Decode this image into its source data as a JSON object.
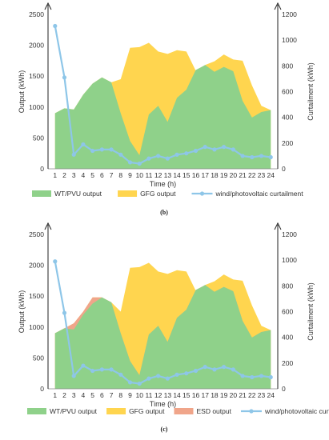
{
  "chart_data": [
    {
      "id": "b",
      "type": "area",
      "caption": "(b)",
      "x": [
        1,
        2,
        3,
        4,
        5,
        6,
        7,
        8,
        9,
        10,
        11,
        12,
        13,
        14,
        15,
        16,
        17,
        18,
        19,
        20,
        21,
        22,
        23,
        24
      ],
      "xlabel": "Time (h)",
      "ylabel_left": "Output (kWh)",
      "ylabel_right": "Curtailment (kWh)",
      "ylim_left": [
        0,
        2500
      ],
      "ylim_right": [
        0,
        1200
      ],
      "yticks_left": [
        0,
        500,
        1000,
        1500,
        2000,
        2500
      ],
      "yticks_right": [
        0,
        200,
        400,
        600,
        800,
        1000,
        1200
      ],
      "grid": false,
      "legend_position": "bottom",
      "series": [
        {
          "name": "WT/PVU output",
          "kind": "area",
          "axis": "left",
          "color": "#8fd18a",
          "values": [
            900,
            980,
            960,
            1200,
            1380,
            1480,
            1400,
            900,
            450,
            220,
            880,
            1020,
            760,
            1150,
            1280,
            1600,
            1680,
            1570,
            1650,
            1580,
            1100,
            830,
            920,
            950
          ]
        },
        {
          "name": "GFG output",
          "kind": "area-total",
          "axis": "left",
          "color": "#ffd54f",
          "values": [
            900,
            980,
            960,
            1200,
            1380,
            1480,
            1400,
            1450,
            1960,
            1970,
            2040,
            1900,
            1860,
            1920,
            1900,
            1590,
            1680,
            1740,
            1850,
            1770,
            1750,
            1350,
            1020,
            950
          ]
        },
        {
          "name": "wind/photovoltaic curtailment",
          "kind": "line",
          "axis": "right",
          "color": "#8ec6e8",
          "values": [
            1110,
            710,
            110,
            190,
            140,
            150,
            150,
            110,
            50,
            40,
            80,
            100,
            80,
            110,
            120,
            140,
            170,
            150,
            170,
            150,
            100,
            90,
            100,
            90
          ]
        }
      ]
    },
    {
      "id": "c",
      "type": "area",
      "caption": "(c)",
      "x": [
        1,
        2,
        3,
        4,
        5,
        6,
        7,
        8,
        9,
        10,
        11,
        12,
        13,
        14,
        15,
        16,
        17,
        18,
        19,
        20,
        21,
        22,
        23,
        24
      ],
      "xlabel": "Time (h)",
      "ylabel_left": "Output (kWh)",
      "ylabel_right": "Curtailment (kWh)",
      "ylim_left": [
        0,
        2500
      ],
      "ylim_right": [
        0,
        1200
      ],
      "yticks_left": [
        0,
        500,
        1000,
        1500,
        2000,
        2500
      ],
      "yticks_right": [
        0,
        200,
        400,
        600,
        800,
        1000,
        1200
      ],
      "grid": false,
      "legend_position": "bottom",
      "series": [
        {
          "name": "WT/PVU output",
          "kind": "area",
          "axis": "left",
          "color": "#8fd18a",
          "values": [
            900,
            980,
            960,
            1200,
            1380,
            1480,
            1400,
            900,
            450,
            220,
            880,
            1020,
            760,
            1150,
            1280,
            1600,
            1680,
            1570,
            1650,
            1580,
            1100,
            830,
            920,
            950
          ]
        },
        {
          "name": "ESD output",
          "kind": "area-total",
          "axis": "left",
          "color": "#f0a58a",
          "values": [
            900,
            980,
            1060,
            1250,
            1480,
            1480,
            1400,
            900,
            450,
            220,
            880,
            1020,
            760,
            1150,
            1280,
            1600,
            1680,
            1570,
            1650,
            1580,
            1100,
            830,
            920,
            950
          ]
        },
        {
          "name": "GFG output",
          "kind": "area-total",
          "axis": "left",
          "color": "#ffd54f",
          "values": [
            900,
            980,
            1060,
            1250,
            1480,
            1480,
            1400,
            1250,
            1960,
            1970,
            2040,
            1900,
            1860,
            1920,
            1900,
            1590,
            1680,
            1740,
            1850,
            1770,
            1750,
            1350,
            1020,
            950
          ]
        },
        {
          "name": "wind/photovoltaic curtailment",
          "kind": "line",
          "axis": "right",
          "color": "#8ec6e8",
          "values": [
            990,
            590,
            100,
            180,
            140,
            150,
            150,
            110,
            50,
            40,
            80,
            100,
            80,
            110,
            120,
            140,
            170,
            150,
            170,
            150,
            100,
            90,
            100,
            90
          ]
        }
      ]
    }
  ]
}
